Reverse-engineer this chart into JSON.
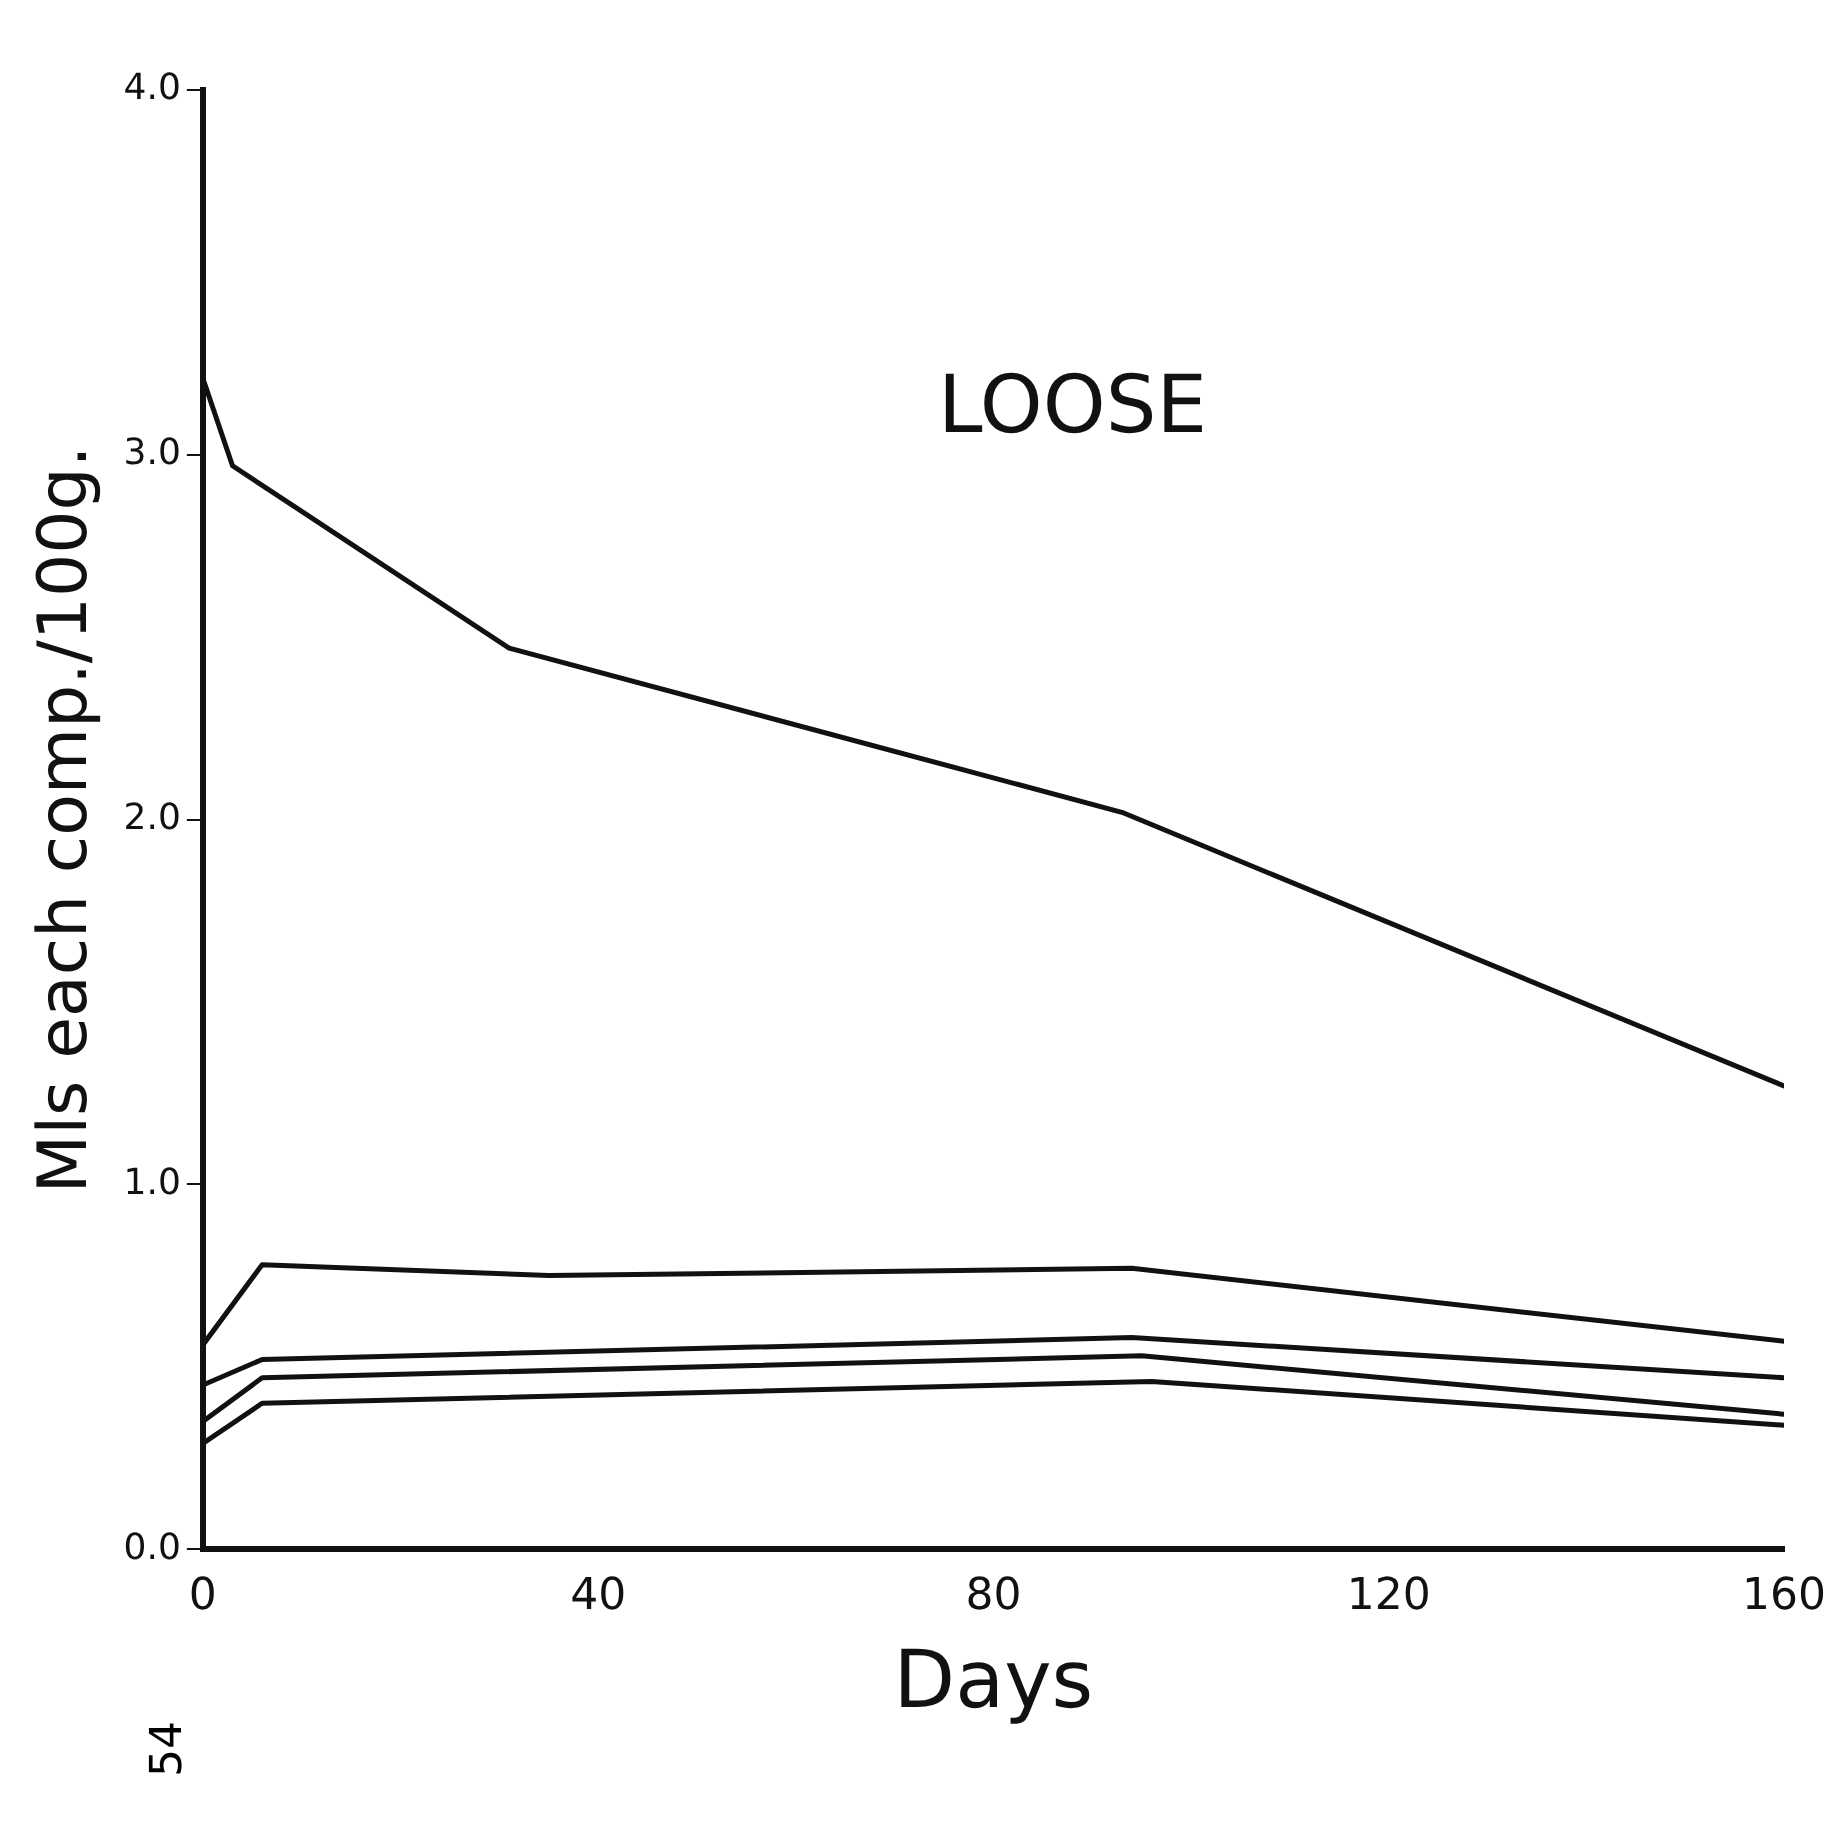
{
  "chart_data": {
    "type": "line",
    "title": "LOOSE",
    "xlabel": "Days",
    "ylabel": "Mls each comp./100g.",
    "annotations": [
      "54"
    ],
    "xlim": [
      0,
      160
    ],
    "xticks": [
      0,
      40,
      80,
      120,
      160
    ],
    "ylim": [
      0,
      4
    ],
    "yticks": [
      {
        "value": 0,
        "label": "0.0"
      },
      {
        "value": 1,
        "label": "1.0"
      },
      {
        "value": 2,
        "label": "2.0"
      },
      {
        "value": 3,
        "label": "3.0"
      },
      {
        "value": 4,
        "label": "4.0"
      }
    ],
    "grid": false,
    "legend": false,
    "marker": "none",
    "line_style": "solid",
    "series": [
      {
        "color": "#111111",
        "x": [
          0,
          3,
          31,
          93,
          160
        ],
        "values": [
          3.21,
          2.97,
          2.47,
          2.02,
          1.27
        ]
      },
      {
        "color": "#111111",
        "x": [
          0,
          6,
          35,
          94,
          160
        ],
        "values": [
          0.56,
          0.78,
          0.75,
          0.77,
          0.57
        ]
      },
      {
        "color": "#111111",
        "x": [
          0,
          6,
          94,
          160
        ],
        "values": [
          0.45,
          0.52,
          0.58,
          0.47
        ]
      },
      {
        "color": "#111111",
        "x": [
          0,
          6,
          95,
          160
        ],
        "values": [
          0.35,
          0.47,
          0.53,
          0.37
        ]
      },
      {
        "color": "#111111",
        "x": [
          0,
          6,
          96,
          160
        ],
        "values": [
          0.29,
          0.4,
          0.46,
          0.34
        ]
      }
    ]
  }
}
